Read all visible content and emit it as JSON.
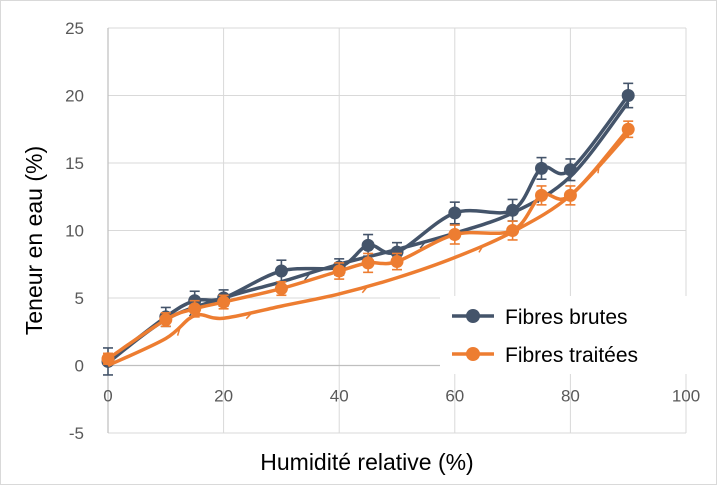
{
  "chart_data": {
    "type": "line",
    "xlabel": "Humidité relative (%)",
    "ylabel": "Teneur en eau (%)",
    "xlim": [
      0,
      100
    ],
    "ylim": [
      -5,
      25
    ],
    "x_ticks": [
      0,
      20,
      40,
      60,
      80,
      100
    ],
    "y_ticks": [
      -5,
      0,
      5,
      10,
      15,
      20,
      25
    ],
    "x_tick_labels": [
      "0",
      "20",
      "40",
      "60",
      "80",
      "100"
    ],
    "y_tick_labels": [
      "-5",
      "0",
      "5",
      "10",
      "15",
      "20",
      "25"
    ],
    "grid": true,
    "legend_position": "bottom-right",
    "series": [
      {
        "name": "Fibres brutes",
        "color": "#44546a",
        "desorption": {
          "x": [
            90,
            80,
            75,
            70,
            60,
            50,
            45,
            40,
            30,
            20,
            15,
            10,
            0
          ],
          "y": [
            20.0,
            14.5,
            14.6,
            11.5,
            11.3,
            8.4,
            8.9,
            7.3,
            7.0,
            5.0,
            4.8,
            3.6,
            0.3
          ],
          "err": [
            0.9,
            0.8,
            0.8,
            0.8,
            0.8,
            0.7,
            0.8,
            0.6,
            0.8,
            0.6,
            0.7,
            0.7,
            1.0
          ]
        },
        "adsorption": {
          "x": [
            0,
            10,
            20,
            30,
            40,
            50,
            60,
            70,
            80,
            90
          ],
          "y": [
            0.2,
            3.4,
            5.0,
            6.2,
            7.5,
            8.6,
            9.8,
            11.3,
            14.0,
            19.5
          ]
        }
      },
      {
        "name": "Fibres traitées",
        "color": "#ed7d31",
        "desorption": {
          "x": [
            90,
            80,
            75,
            70,
            60,
            50,
            45,
            40,
            30,
            20,
            15,
            10,
            0
          ],
          "y": [
            17.5,
            12.6,
            12.6,
            10.0,
            9.7,
            7.7,
            7.6,
            7.0,
            5.7,
            4.7,
            4.2,
            3.4,
            0.5
          ],
          "err": [
            0.6,
            0.7,
            0.7,
            0.7,
            0.7,
            0.6,
            0.7,
            0.6,
            0.5,
            0.5,
            0.6,
            0.5,
            0.4
          ]
        },
        "adsorption": {
          "x": [
            0,
            10,
            15,
            20,
            30,
            40,
            50,
            60,
            70,
            80,
            90
          ],
          "y": [
            0.0,
            2.0,
            3.7,
            3.5,
            4.4,
            5.3,
            6.5,
            8.0,
            9.9,
            12.6,
            17.2
          ]
        }
      }
    ]
  }
}
